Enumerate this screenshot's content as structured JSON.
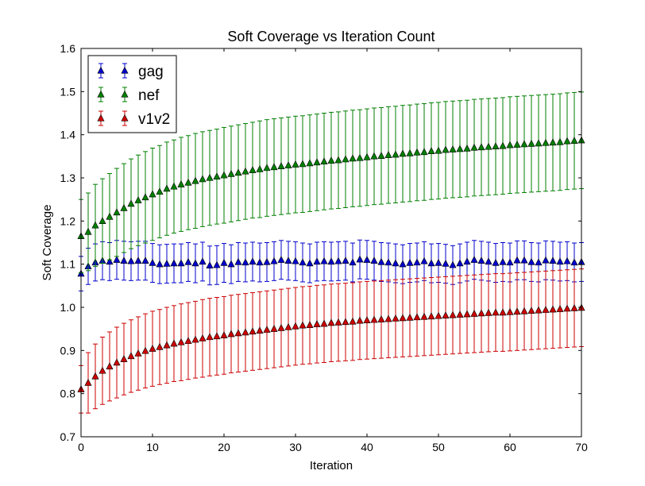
{
  "chart_data": {
    "type": "scatter",
    "title": "Soft Coverage vs Iteration Count",
    "xlabel": "Iteration",
    "ylabel": "Soft Coverage",
    "xlim": [
      0,
      70
    ],
    "ylim": [
      0.7,
      1.6
    ],
    "xticks": [
      "0",
      "10",
      "20",
      "30",
      "40",
      "50",
      "60",
      "70"
    ],
    "yticks": [
      "0.7",
      "0.8",
      "0.9",
      "1.0",
      "1.1",
      "1.2",
      "1.3",
      "1.4",
      "1.5",
      "1.6"
    ],
    "grid": false,
    "legend_position": "top-left",
    "marker": "triangle-up",
    "x": [
      0,
      1,
      2,
      3,
      4,
      5,
      6,
      7,
      8,
      9,
      10,
      11,
      12,
      13,
      14,
      15,
      16,
      17,
      18,
      19,
      20,
      21,
      22,
      23,
      24,
      25,
      26,
      27,
      28,
      29,
      30,
      31,
      32,
      33,
      34,
      35,
      36,
      37,
      38,
      39,
      40,
      41,
      42,
      43,
      44,
      45,
      46,
      47,
      48,
      49,
      50,
      51,
      52,
      53,
      54,
      55,
      56,
      57,
      58,
      59,
      60,
      61,
      62,
      63,
      64,
      65,
      66,
      67,
      68,
      69,
      70
    ],
    "series": [
      {
        "name": "gag",
        "color": "#0000cc",
        "values": [
          1.078,
          1.095,
          1.104,
          1.108,
          1.106,
          1.11,
          1.108,
          1.107,
          1.108,
          1.108,
          1.103,
          1.1,
          1.101,
          1.102,
          1.102,
          1.105,
          1.102,
          1.106,
          1.097,
          1.098,
          1.103,
          1.1,
          1.105,
          1.104,
          1.106,
          1.104,
          1.105,
          1.107,
          1.11,
          1.108,
          1.107,
          1.104,
          1.102,
          1.106,
          1.107,
          1.106,
          1.107,
          1.108,
          1.104,
          1.111,
          1.11,
          1.108,
          1.105,
          1.104,
          1.102,
          1.1,
          1.103,
          1.104,
          1.107,
          1.102,
          1.103,
          1.101,
          1.098,
          1.102,
          1.106,
          1.11,
          1.108,
          1.106,
          1.103,
          1.105,
          1.104,
          1.109,
          1.109,
          1.105,
          1.104,
          1.109,
          1.108,
          1.106,
          1.107,
          1.104,
          1.105
        ],
        "errors": [
          0.04,
          0.042,
          0.043,
          0.044,
          0.044,
          0.045,
          0.045,
          0.045,
          0.045,
          0.045,
          0.045,
          0.045,
          0.045,
          0.045,
          0.045,
          0.045,
          0.045,
          0.045,
          0.045,
          0.045,
          0.045,
          0.045,
          0.045,
          0.045,
          0.045,
          0.045,
          0.045,
          0.045,
          0.045,
          0.045,
          0.045,
          0.045,
          0.045,
          0.045,
          0.045,
          0.045,
          0.045,
          0.045,
          0.045,
          0.045,
          0.045,
          0.045,
          0.045,
          0.045,
          0.045,
          0.045,
          0.045,
          0.045,
          0.045,
          0.045,
          0.045,
          0.045,
          0.045,
          0.045,
          0.045,
          0.045,
          0.045,
          0.045,
          0.045,
          0.045,
          0.045,
          0.045,
          0.045,
          0.045,
          0.045,
          0.045,
          0.045,
          0.045,
          0.045,
          0.045,
          0.045
        ]
      },
      {
        "name": "nef",
        "color": "#007f00",
        "values": [
          1.165,
          1.175,
          1.19,
          1.2,
          1.21,
          1.22,
          1.23,
          1.24,
          1.248,
          1.255,
          1.262,
          1.268,
          1.275,
          1.28,
          1.285,
          1.289,
          1.293,
          1.297,
          1.3,
          1.303,
          1.306,
          1.309,
          1.312,
          1.315,
          1.318,
          1.32,
          1.323,
          1.325,
          1.327,
          1.329,
          1.331,
          1.332,
          1.334,
          1.336,
          1.338,
          1.34,
          1.341,
          1.343,
          1.345,
          1.346,
          1.348,
          1.35,
          1.351,
          1.353,
          1.354,
          1.356,
          1.357,
          1.359,
          1.36,
          1.362,
          1.363,
          1.365,
          1.366,
          1.367,
          1.368,
          1.37,
          1.371,
          1.372,
          1.373,
          1.374,
          1.376,
          1.377,
          1.378,
          1.379,
          1.38,
          1.381,
          1.382,
          1.383,
          1.385,
          1.386,
          1.387
        ],
        "errors": [
          0.085,
          0.09,
          0.095,
          0.098,
          0.1,
          0.102,
          0.103,
          0.104,
          0.105,
          0.106,
          0.107,
          0.107,
          0.108,
          0.108,
          0.109,
          0.109,
          0.11,
          0.11,
          0.11,
          0.11,
          0.111,
          0.111,
          0.111,
          0.111,
          0.111,
          0.112,
          0.112,
          0.112,
          0.112,
          0.112,
          0.112,
          0.112,
          0.112,
          0.112,
          0.112,
          0.112,
          0.112,
          0.112,
          0.112,
          0.112,
          0.112,
          0.112,
          0.112,
          0.112,
          0.112,
          0.112,
          0.112,
          0.112,
          0.112,
          0.112,
          0.112,
          0.112,
          0.112,
          0.112,
          0.112,
          0.112,
          0.112,
          0.112,
          0.112,
          0.112,
          0.112,
          0.112,
          0.112,
          0.112,
          0.112,
          0.112,
          0.112,
          0.112,
          0.112,
          0.112,
          0.112
        ]
      },
      {
        "name": "v1v2",
        "color": "#cc0000",
        "values": [
          0.81,
          0.825,
          0.84,
          0.853,
          0.863,
          0.872,
          0.88,
          0.887,
          0.893,
          0.899,
          0.904,
          0.908,
          0.912,
          0.916,
          0.919,
          0.922,
          0.925,
          0.928,
          0.931,
          0.933,
          0.935,
          0.938,
          0.94,
          0.942,
          0.944,
          0.946,
          0.948,
          0.95,
          0.952,
          0.954,
          0.956,
          0.958,
          0.959,
          0.961,
          0.962,
          0.964,
          0.965,
          0.966,
          0.967,
          0.969,
          0.97,
          0.971,
          0.972,
          0.973,
          0.974,
          0.975,
          0.976,
          0.977,
          0.978,
          0.979,
          0.98,
          0.981,
          0.982,
          0.983,
          0.984,
          0.985,
          0.986,
          0.987,
          0.988,
          0.988,
          0.989,
          0.99,
          0.991,
          0.992,
          0.993,
          0.994,
          0.995,
          0.996,
          0.997,
          0.998,
          0.999
        ],
        "errors": [
          0.055,
          0.07,
          0.075,
          0.078,
          0.08,
          0.082,
          0.083,
          0.084,
          0.085,
          0.086,
          0.087,
          0.087,
          0.088,
          0.088,
          0.089,
          0.089,
          0.089,
          0.09,
          0.09,
          0.09,
          0.09,
          0.09,
          0.09,
          0.09,
          0.09,
          0.09,
          0.09,
          0.09,
          0.09,
          0.09,
          0.09,
          0.09,
          0.09,
          0.09,
          0.09,
          0.09,
          0.09,
          0.09,
          0.09,
          0.09,
          0.09,
          0.09,
          0.09,
          0.09,
          0.09,
          0.09,
          0.09,
          0.09,
          0.09,
          0.09,
          0.09,
          0.09,
          0.09,
          0.09,
          0.09,
          0.09,
          0.09,
          0.09,
          0.09,
          0.09,
          0.09,
          0.09,
          0.09,
          0.09,
          0.09,
          0.09,
          0.09,
          0.09,
          0.09,
          0.09,
          0.09
        ]
      }
    ]
  }
}
